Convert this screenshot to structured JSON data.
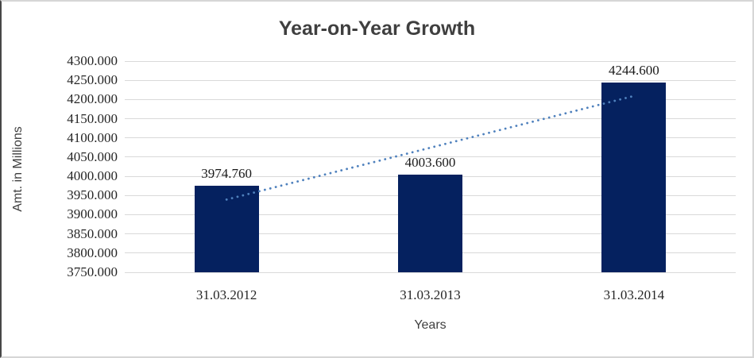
{
  "chart_data": {
    "type": "bar",
    "title": "Year-on-Year Growth",
    "xlabel": "Years",
    "ylabel": "Amt. in Millions",
    "categories": [
      "31.03.2012",
      "31.03.2013",
      "31.03.2014"
    ],
    "values": [
      3974.76,
      4003.6,
      4244.6
    ],
    "data_labels": [
      "3974.760",
      "4003.600",
      "4244.600"
    ],
    "ylim": [
      3750.0,
      4300.0
    ],
    "ytick_step": 50,
    "ytick_decimals": 3,
    "grid": true,
    "legend": "none",
    "trendline": {
      "type": "linear",
      "style": "dotted"
    },
    "colors": {
      "bar": "#05215f",
      "trendline": "#4f81bd",
      "gridline": "#d9d9d9",
      "title_text": "#3f3f3f",
      "axis_text": "#262626",
      "background": "#ffffff"
    }
  }
}
